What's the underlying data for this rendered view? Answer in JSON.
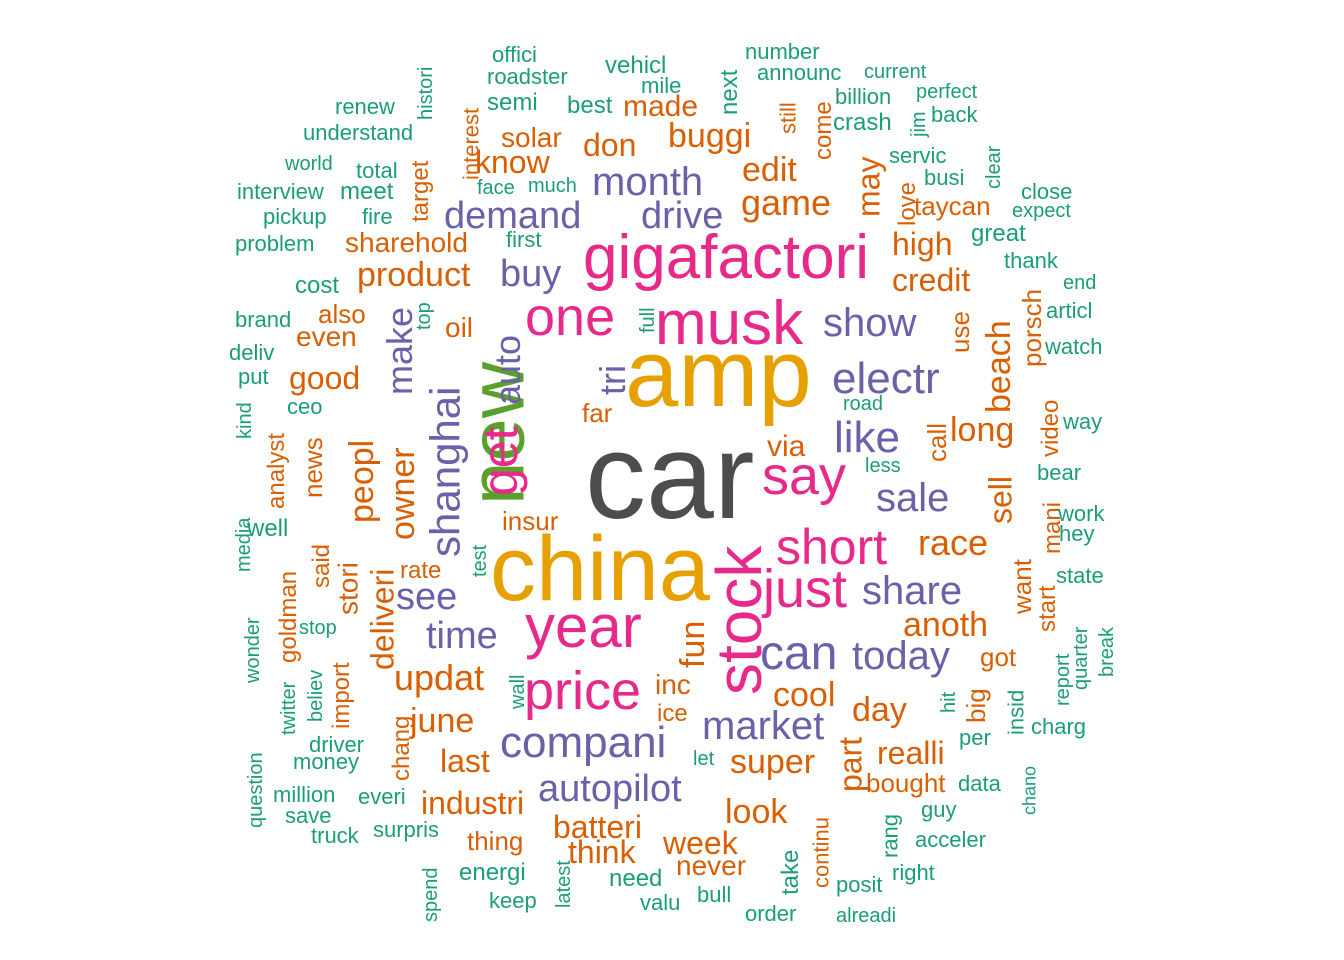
{
  "palette": {
    "gray": "#4d4d4d",
    "gold": "#e6a100",
    "green": "#5aa02c",
    "magenta": "#e7298a",
    "purple": "#6a62a8",
    "orange": "#d95f02",
    "teal": "#1b9e77"
  },
  "words": [
    {
      "text": "car",
      "color": "gray",
      "rank": 1
    },
    {
      "text": "amp",
      "color": "gold",
      "rank": 2
    },
    {
      "text": "china",
      "color": "gold",
      "rank": 2
    },
    {
      "text": "new",
      "color": "green",
      "rank": 3
    },
    {
      "text": "stock",
      "color": "magenta",
      "rank": 4
    },
    {
      "text": "gigafactori",
      "color": "magenta",
      "rank": 5
    },
    {
      "text": "musk",
      "color": "magenta",
      "rank": 5
    },
    {
      "text": "year",
      "color": "magenta",
      "rank": 5
    },
    {
      "text": "price",
      "color": "magenta",
      "rank": 5
    },
    {
      "text": "one",
      "color": "magenta",
      "rank": 5
    },
    {
      "text": "just",
      "color": "magenta",
      "rank": 5
    },
    {
      "text": "say",
      "color": "magenta",
      "rank": 5
    },
    {
      "text": "get",
      "color": "magenta",
      "rank": 5
    },
    {
      "text": "short",
      "color": "magenta",
      "rank": 5
    },
    {
      "text": "can",
      "color": "purple",
      "rank": 5
    },
    {
      "text": "compani",
      "color": "purple",
      "rank": 6
    },
    {
      "text": "electr",
      "color": "purple",
      "rank": 6
    },
    {
      "text": "like",
      "color": "purple",
      "rank": 6
    },
    {
      "text": "market",
      "color": "purple",
      "rank": 6
    },
    {
      "text": "autopilot",
      "color": "purple",
      "rank": 6
    },
    {
      "text": "shanghai",
      "color": "purple",
      "rank": 6
    },
    {
      "text": "month",
      "color": "purple",
      "rank": 6
    },
    {
      "text": "demand",
      "color": "purple",
      "rank": 6
    },
    {
      "text": "drive",
      "color": "purple",
      "rank": 6
    },
    {
      "text": "buy",
      "color": "purple",
      "rank": 6
    },
    {
      "text": "show",
      "color": "purple",
      "rank": 6
    },
    {
      "text": "sale",
      "color": "purple",
      "rank": 6
    },
    {
      "text": "share",
      "color": "purple",
      "rank": 6
    },
    {
      "text": "today",
      "color": "purple",
      "rank": 6
    },
    {
      "text": "time",
      "color": "purple",
      "rank": 6
    },
    {
      "text": "see",
      "color": "purple",
      "rank": 6
    },
    {
      "text": "auto",
      "color": "purple",
      "rank": 6
    },
    {
      "text": "tri",
      "color": "purple",
      "rank": 6
    },
    {
      "text": "make",
      "color": "purple",
      "rank": 6
    },
    {
      "text": "product",
      "color": "orange",
      "rank": 7
    },
    {
      "text": "game",
      "color": "orange",
      "rank": 7
    },
    {
      "text": "updat",
      "color": "orange",
      "rank": 7
    },
    {
      "text": "owner",
      "color": "orange",
      "rank": 7
    },
    {
      "text": "peopl",
      "color": "orange",
      "rank": 7
    },
    {
      "text": "race",
      "color": "orange",
      "rank": 7
    },
    {
      "text": "anoth",
      "color": "orange",
      "rank": 7
    },
    {
      "text": "super",
      "color": "orange",
      "rank": 7
    },
    {
      "text": "day",
      "color": "orange",
      "rank": 7
    },
    {
      "text": "cool",
      "color": "orange",
      "rank": 7
    },
    {
      "text": "june",
      "color": "orange",
      "rank": 7
    },
    {
      "text": "last",
      "color": "orange",
      "rank": 7
    },
    {
      "text": "industri",
      "color": "orange",
      "rank": 7
    },
    {
      "text": "batteri",
      "color": "orange",
      "rank": 7
    },
    {
      "text": "look",
      "color": "orange",
      "rank": 7
    },
    {
      "text": "week",
      "color": "orange",
      "rank": 7
    },
    {
      "text": "think",
      "color": "orange",
      "rank": 7
    },
    {
      "text": "realli",
      "color": "orange",
      "rank": 7
    },
    {
      "text": "long",
      "color": "orange",
      "rank": 7
    },
    {
      "text": "credit",
      "color": "orange",
      "rank": 7
    },
    {
      "text": "high",
      "color": "orange",
      "rank": 7
    },
    {
      "text": "good",
      "color": "orange",
      "rank": 7
    },
    {
      "text": "deliveri",
      "color": "orange",
      "rank": 7
    },
    {
      "text": "fun",
      "color": "orange",
      "rank": 7
    },
    {
      "text": "edit",
      "color": "orange",
      "rank": 7
    },
    {
      "text": "buggi",
      "color": "orange",
      "rank": 7
    },
    {
      "text": "don",
      "color": "orange",
      "rank": 7
    },
    {
      "text": "made",
      "color": "orange",
      "rank": 7
    },
    {
      "text": "know",
      "color": "orange",
      "rank": 7
    },
    {
      "text": "sharehold",
      "color": "orange",
      "rank": 7
    },
    {
      "text": "beach",
      "color": "orange",
      "rank": 7
    },
    {
      "text": "sell",
      "color": "orange",
      "rank": 7
    },
    {
      "text": "may",
      "color": "orange",
      "rank": 7
    },
    {
      "text": "part",
      "color": "orange",
      "rank": 7
    },
    {
      "text": "oil",
      "color": "orange",
      "rank": 8
    },
    {
      "text": "solar",
      "color": "orange",
      "rank": 8
    },
    {
      "text": "even",
      "color": "orange",
      "rank": 8
    },
    {
      "text": "also",
      "color": "orange",
      "rank": 8
    },
    {
      "text": "stori",
      "color": "orange",
      "rank": 8
    },
    {
      "text": "via",
      "color": "orange",
      "rank": 8
    },
    {
      "text": "far",
      "color": "orange",
      "rank": 8
    },
    {
      "text": "insur",
      "color": "orange",
      "rank": 8
    },
    {
      "text": "rate",
      "color": "orange",
      "rank": 8
    },
    {
      "text": "inc",
      "color": "orange",
      "rank": 8
    },
    {
      "text": "ice",
      "color": "orange",
      "rank": 8
    },
    {
      "text": "bought",
      "color": "orange",
      "rank": 8
    },
    {
      "text": "got",
      "color": "orange",
      "rank": 8
    },
    {
      "text": "never",
      "color": "orange",
      "rank": 8
    },
    {
      "text": "thing",
      "color": "orange",
      "rank": 8
    },
    {
      "text": "taycan",
      "color": "orange",
      "rank": 8
    },
    {
      "text": "news",
      "color": "orange",
      "rank": 8
    },
    {
      "text": "said",
      "color": "orange",
      "rank": 8
    },
    {
      "text": "analyst",
      "color": "orange",
      "rank": 8
    },
    {
      "text": "import",
      "color": "orange",
      "rank": 8
    },
    {
      "text": "chang",
      "color": "orange",
      "rank": 8
    },
    {
      "text": "goldman",
      "color": "orange",
      "rank": 8
    },
    {
      "text": "target",
      "color": "orange",
      "rank": 8
    },
    {
      "text": "interest",
      "color": "orange",
      "rank": 8
    },
    {
      "text": "porsch",
      "color": "orange",
      "rank": 8
    },
    {
      "text": "video",
      "color": "orange",
      "rank": 8
    },
    {
      "text": "mani",
      "color": "orange",
      "rank": 8
    },
    {
      "text": "want",
      "color": "orange",
      "rank": 8
    },
    {
      "text": "start",
      "color": "orange",
      "rank": 8
    },
    {
      "text": "big",
      "color": "orange",
      "rank": 8
    },
    {
      "text": "call",
      "color": "orange",
      "rank": 8
    },
    {
      "text": "use",
      "color": "orange",
      "rank": 8
    },
    {
      "text": "love",
      "color": "orange",
      "rank": 8
    },
    {
      "text": "come",
      "color": "orange",
      "rank": 8
    },
    {
      "text": "still",
      "color": "orange",
      "rank": 8
    },
    {
      "text": "continu",
      "color": "orange",
      "rank": 8
    },
    {
      "text": "take",
      "color": "teal",
      "rank": 8
    },
    {
      "text": "rang",
      "color": "teal",
      "rank": 8
    },
    {
      "text": "vehicl",
      "color": "teal",
      "rank": 9
    },
    {
      "text": "best",
      "color": "teal",
      "rank": 9
    },
    {
      "text": "semi",
      "color": "teal",
      "rank": 9
    },
    {
      "text": "next",
      "color": "teal",
      "rank": 9
    },
    {
      "text": "roadster",
      "color": "teal",
      "rank": 9
    },
    {
      "text": "mile",
      "color": "teal",
      "rank": 9
    },
    {
      "text": "offici",
      "color": "teal",
      "rank": 9
    },
    {
      "text": "number",
      "color": "teal",
      "rank": 9
    },
    {
      "text": "announc",
      "color": "teal",
      "rank": 9
    },
    {
      "text": "current",
      "color": "teal",
      "rank": 9
    },
    {
      "text": "billion",
      "color": "teal",
      "rank": 9
    },
    {
      "text": "perfect",
      "color": "teal",
      "rank": 9
    },
    {
      "text": "crash",
      "color": "teal",
      "rank": 9
    },
    {
      "text": "back",
      "color": "teal",
      "rank": 9
    },
    {
      "text": "jim",
      "color": "teal",
      "rank": 9
    },
    {
      "text": "servic",
      "color": "teal",
      "rank": 9
    },
    {
      "text": "busi",
      "color": "teal",
      "rank": 9
    },
    {
      "text": "clear",
      "color": "teal",
      "rank": 9
    },
    {
      "text": "close",
      "color": "teal",
      "rank": 9
    },
    {
      "text": "expect",
      "color": "teal",
      "rank": 9
    },
    {
      "text": "great",
      "color": "teal",
      "rank": 9
    },
    {
      "text": "thank",
      "color": "teal",
      "rank": 9
    },
    {
      "text": "end",
      "color": "teal",
      "rank": 9
    },
    {
      "text": "articl",
      "color": "teal",
      "rank": 9
    },
    {
      "text": "watch",
      "color": "teal",
      "rank": 9
    },
    {
      "text": "way",
      "color": "teal",
      "rank": 9
    },
    {
      "text": "bear",
      "color": "teal",
      "rank": 9
    },
    {
      "text": "work",
      "color": "teal",
      "rank": 9
    },
    {
      "text": "hey",
      "color": "teal",
      "rank": 9
    },
    {
      "text": "state",
      "color": "teal",
      "rank": 9
    },
    {
      "text": "quarter",
      "color": "teal",
      "rank": 9
    },
    {
      "text": "break",
      "color": "teal",
      "rank": 9
    },
    {
      "text": "report",
      "color": "teal",
      "rank": 9
    },
    {
      "text": "charg",
      "color": "teal",
      "rank": 9
    },
    {
      "text": "insid",
      "color": "teal",
      "rank": 9
    },
    {
      "text": "per",
      "color": "teal",
      "rank": 9
    },
    {
      "text": "hit",
      "color": "teal",
      "rank": 9
    },
    {
      "text": "chano",
      "color": "teal",
      "rank": 9
    },
    {
      "text": "data",
      "color": "teal",
      "rank": 9
    },
    {
      "text": "guy",
      "color": "teal",
      "rank": 9
    },
    {
      "text": "acceler",
      "color": "teal",
      "rank": 9
    },
    {
      "text": "right",
      "color": "teal",
      "rank": 9
    },
    {
      "text": "posit",
      "color": "teal",
      "rank": 9
    },
    {
      "text": "alreadi",
      "color": "teal",
      "rank": 9
    },
    {
      "text": "order",
      "color": "teal",
      "rank": 9
    },
    {
      "text": "bull",
      "color": "teal",
      "rank": 9
    },
    {
      "text": "valu",
      "color": "teal",
      "rank": 9
    },
    {
      "text": "need",
      "color": "teal",
      "rank": 9
    },
    {
      "text": "latest",
      "color": "teal",
      "rank": 9
    },
    {
      "text": "keep",
      "color": "teal",
      "rank": 9
    },
    {
      "text": "energi",
      "color": "teal",
      "rank": 9
    },
    {
      "text": "spend",
      "color": "teal",
      "rank": 9
    },
    {
      "text": "surpris",
      "color": "teal",
      "rank": 9
    },
    {
      "text": "truck",
      "color": "teal",
      "rank": 9
    },
    {
      "text": "save",
      "color": "teal",
      "rank": 9
    },
    {
      "text": "million",
      "color": "teal",
      "rank": 9
    },
    {
      "text": "everi",
      "color": "teal",
      "rank": 9
    },
    {
      "text": "money",
      "color": "teal",
      "rank": 9
    },
    {
      "text": "driver",
      "color": "teal",
      "rank": 9
    },
    {
      "text": "question",
      "color": "teal",
      "rank": 9
    },
    {
      "text": "twitter",
      "color": "teal",
      "rank": 9
    },
    {
      "text": "believ",
      "color": "teal",
      "rank": 9
    },
    {
      "text": "stop",
      "color": "teal",
      "rank": 9
    },
    {
      "text": "wonder",
      "color": "teal",
      "rank": 9
    },
    {
      "text": "media",
      "color": "teal",
      "rank": 9
    },
    {
      "text": "well",
      "color": "teal",
      "rank": 9
    },
    {
      "text": "kind",
      "color": "teal",
      "rank": 9
    },
    {
      "text": "ceo",
      "color": "teal",
      "rank": 9
    },
    {
      "text": "put",
      "color": "teal",
      "rank": 9
    },
    {
      "text": "deliv",
      "color": "teal",
      "rank": 9
    },
    {
      "text": "brand",
      "color": "teal",
      "rank": 9
    },
    {
      "text": "cost",
      "color": "teal",
      "rank": 9
    },
    {
      "text": "problem",
      "color": "teal",
      "rank": 9
    },
    {
      "text": "pickup",
      "color": "teal",
      "rank": 9
    },
    {
      "text": "interview",
      "color": "teal",
      "rank": 9
    },
    {
      "text": "world",
      "color": "teal",
      "rank": 9
    },
    {
      "text": "total",
      "color": "teal",
      "rank": 9
    },
    {
      "text": "meet",
      "color": "teal",
      "rank": 9
    },
    {
      "text": "fire",
      "color": "teal",
      "rank": 9
    },
    {
      "text": "understand",
      "color": "teal",
      "rank": 9
    },
    {
      "text": "renew",
      "color": "teal",
      "rank": 9
    },
    {
      "text": "histori",
      "color": "teal",
      "rank": 9
    },
    {
      "text": "face",
      "color": "teal",
      "rank": 9
    },
    {
      "text": "much",
      "color": "teal",
      "rank": 9
    },
    {
      "text": "first",
      "color": "teal",
      "rank": 9
    },
    {
      "text": "top",
      "color": "teal",
      "rank": 9
    },
    {
      "text": "full",
      "color": "teal",
      "rank": 9
    },
    {
      "text": "road",
      "color": "teal",
      "rank": 9
    },
    {
      "text": "less",
      "color": "teal",
      "rank": 9
    },
    {
      "text": "test",
      "color": "teal",
      "rank": 9
    },
    {
      "text": "wall",
      "color": "teal",
      "rank": 9
    },
    {
      "text": "let",
      "color": "teal",
      "rank": 9
    }
  ]
}
